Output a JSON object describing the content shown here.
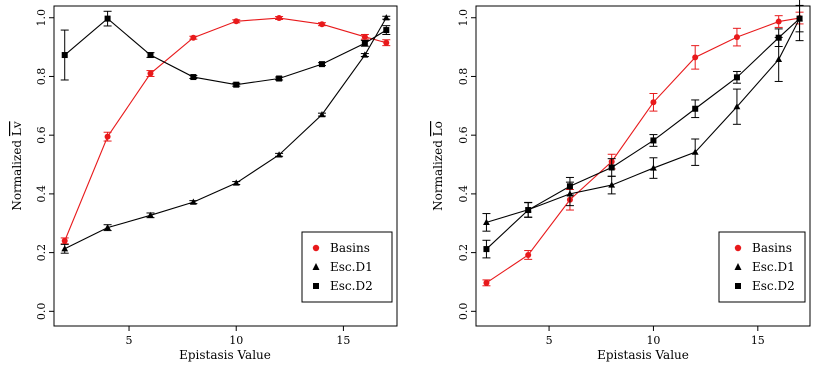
{
  "chart_data": [
    {
      "type": "line",
      "xlabel": "Epistasis Value",
      "ylabel_main": "Normalized ",
      "ylabel_over": "Lv",
      "xlim": [
        1.5,
        17.5
      ],
      "ylim": [
        -0.05,
        1.04
      ],
      "xticks": [
        5,
        10,
        15
      ],
      "yticks": [
        0.0,
        0.2,
        0.4,
        0.6,
        0.8,
        1.0
      ],
      "ytick_labels": [
        "0.0",
        "0.2",
        "0.4",
        "0.6",
        "0.8",
        "1.0"
      ],
      "legend_position": "bottom-right",
      "series": [
        {
          "name": "Basins",
          "marker": "circle",
          "color": "#e8191b",
          "x": [
            2,
            4,
            6,
            8,
            10,
            12,
            14,
            16,
            17
          ],
          "y": [
            0.24,
            0.595,
            0.81,
            0.932,
            0.988,
            0.999,
            0.978,
            0.935,
            0.915
          ],
          "err": [
            0.01,
            0.015,
            0.01,
            0.005,
            0.005,
            0.005,
            0.005,
            0.008,
            0.01
          ]
        },
        {
          "name": "Esc.D1",
          "marker": "triangle",
          "color": "#000000",
          "x": [
            2,
            4,
            6,
            8,
            10,
            12,
            14,
            16,
            17
          ],
          "y": [
            0.213,
            0.285,
            0.327,
            0.372,
            0.437,
            0.533,
            0.67,
            0.873,
            1.0
          ],
          "err": [
            0.015,
            0.01,
            0.008,
            0.005,
            0.005,
            0.005,
            0.005,
            0.005,
            0.005
          ]
        },
        {
          "name": "Esc.D2",
          "marker": "square",
          "color": "#000000",
          "x": [
            2,
            4,
            6,
            8,
            10,
            12,
            14,
            16,
            17
          ],
          "y": [
            0.873,
            0.997,
            0.873,
            0.798,
            0.772,
            0.793,
            0.842,
            0.913,
            0.958
          ],
          "err": [
            0.085,
            0.025,
            0.008,
            0.005,
            0.005,
            0.005,
            0.005,
            0.01,
            0.015
          ]
        }
      ]
    },
    {
      "type": "line",
      "xlabel": "Epistasis Value",
      "ylabel_main": "Normalized ",
      "ylabel_over": "Lo",
      "xlim": [
        1.5,
        17.5
      ],
      "ylim": [
        -0.05,
        1.04
      ],
      "xticks": [
        5,
        10,
        15
      ],
      "yticks": [
        0.0,
        0.2,
        0.4,
        0.6,
        0.8,
        1.0
      ],
      "ytick_labels": [
        "0.0",
        "0.2",
        "0.4",
        "0.6",
        "0.8",
        "1.0"
      ],
      "legend_position": "bottom-right",
      "series": [
        {
          "name": "Basins",
          "marker": "circle",
          "color": "#e8191b",
          "x": [
            2,
            4,
            6,
            8,
            10,
            12,
            14,
            16,
            17
          ],
          "y": [
            0.097,
            0.192,
            0.38,
            0.51,
            0.712,
            0.865,
            0.934,
            0.987,
            0.999
          ],
          "err": [
            0.01,
            0.015,
            0.035,
            0.025,
            0.03,
            0.04,
            0.03,
            0.02,
            0.02
          ]
        },
        {
          "name": "Esc.D1",
          "marker": "triangle",
          "color": "#000000",
          "x": [
            2,
            4,
            6,
            8,
            10,
            12,
            14,
            16,
            17
          ],
          "y": [
            0.303,
            0.346,
            0.4,
            0.43,
            0.488,
            0.542,
            0.697,
            0.858,
            0.997
          ],
          "err": [
            0.03,
            0.025,
            0.04,
            0.03,
            0.035,
            0.045,
            0.06,
            0.075,
            0.045
          ]
        },
        {
          "name": "Esc.D2",
          "marker": "square",
          "color": "#000000",
          "x": [
            2,
            4,
            6,
            8,
            10,
            12,
            14,
            16,
            17
          ],
          "y": [
            0.212,
            0.345,
            0.426,
            0.49,
            0.582,
            0.69,
            0.797,
            0.932,
            0.997
          ],
          "err": [
            0.03,
            0.025,
            0.03,
            0.03,
            0.02,
            0.03,
            0.02,
            0.03,
            0.075
          ]
        }
      ]
    }
  ]
}
